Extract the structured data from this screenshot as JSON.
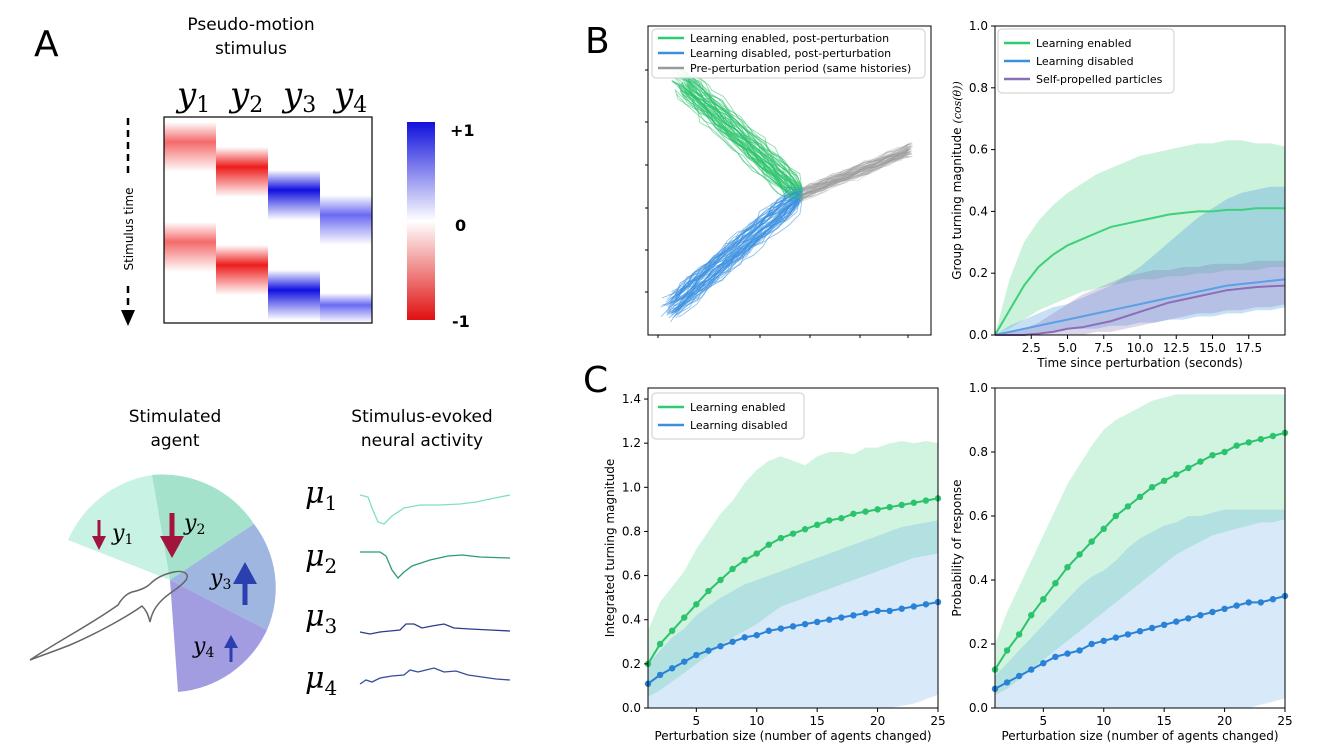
{
  "panels": {
    "A": "A",
    "B": "B",
    "C": "C"
  },
  "panel_a": {
    "title_line1": "Pseudo-motion",
    "title_line2": "stimulus",
    "time_label": "Stimulus time",
    "colorbar_ticks": [
      "+1",
      "0",
      "-1"
    ],
    "columns": [
      {
        "sym": "y",
        "sub": "1"
      },
      {
        "sym": "y",
        "sub": "2"
      },
      {
        "sym": "y",
        "sub": "3"
      },
      {
        "sym": "y",
        "sub": "4"
      }
    ],
    "agent_title_line1": "Stimulated",
    "agent_title_line2": "agent",
    "neural_title_line1": "Stimulus-evoked",
    "neural_title_line2": "neural activity",
    "neurons": [
      {
        "sym": "μ",
        "sub": "1",
        "color": "#7fe0c0"
      },
      {
        "sym": "μ",
        "sub": "2",
        "color": "#2e9a74"
      },
      {
        "sym": "μ",
        "sub": "3",
        "color": "#2a3c8c"
      },
      {
        "sym": "μ",
        "sub": "4",
        "color": "#344e9c"
      }
    ],
    "sector_labels": [
      {
        "sym": "y",
        "sub": "1"
      },
      {
        "sym": "y",
        "sub": "2"
      },
      {
        "sym": "y",
        "sub": "3"
      },
      {
        "sym": "y",
        "sub": "4"
      }
    ]
  },
  "colors": {
    "green": "#2ecc71",
    "green_line": "#2bc36b",
    "blue": "#3b8fe0",
    "purple": "#8a6fb8",
    "gray": "#9a9a9a",
    "dark_red": "#a3143c",
    "dark_blue": "#2b3fb0"
  },
  "chart_data": [
    {
      "id": "B-trajectories",
      "type": "line",
      "title": "",
      "legend": [
        "Learning enabled, post-perturbation",
        "Learning disabled, post-perturbation",
        "Pre-perturbation period (same histories)"
      ],
      "legend_position": "top"
    },
    {
      "id": "B-turning",
      "type": "area",
      "xlabel": "Time since perturbation (seconds)",
      "ylabel": "Group turning magnitude",
      "ylabel_math": "(cos(θ))",
      "xlim": [
        0,
        20
      ],
      "ylim": [
        0,
        1.0
      ],
      "xticks": [
        "2.5",
        "5.0",
        "7.5",
        "10.0",
        "12.5",
        "15.0",
        "17.5"
      ],
      "yticks": [
        "0.0",
        "0.2",
        "0.4",
        "0.6",
        "0.8",
        "1.0"
      ],
      "legend": [
        "Learning enabled",
        "Learning disabled",
        "Self-propelled particles"
      ],
      "legend_position": "top-left",
      "x": [
        0,
        1,
        2,
        3,
        4,
        5,
        6,
        7,
        8,
        9,
        10,
        11,
        12,
        13,
        14,
        15,
        16,
        17,
        18,
        19,
        20
      ],
      "series": [
        {
          "name": "Learning enabled",
          "mean": [
            0,
            0.08,
            0.16,
            0.22,
            0.26,
            0.29,
            0.31,
            0.33,
            0.35,
            0.36,
            0.37,
            0.38,
            0.39,
            0.395,
            0.4,
            0.4,
            0.405,
            0.405,
            0.41,
            0.41,
            0.41
          ],
          "upper": [
            0,
            0.18,
            0.3,
            0.37,
            0.42,
            0.46,
            0.49,
            0.52,
            0.54,
            0.56,
            0.58,
            0.59,
            0.6,
            0.61,
            0.62,
            0.62,
            0.63,
            0.63,
            0.62,
            0.62,
            0.61
          ],
          "lower": [
            0,
            0.02,
            0.05,
            0.08,
            0.1,
            0.12,
            0.14,
            0.15,
            0.16,
            0.17,
            0.18,
            0.18,
            0.19,
            0.19,
            0.2,
            0.2,
            0.21,
            0.21,
            0.21,
            0.22,
            0.22
          ]
        },
        {
          "name": "Learning disabled",
          "mean": [
            0,
            0.01,
            0.02,
            0.03,
            0.04,
            0.05,
            0.06,
            0.07,
            0.08,
            0.09,
            0.1,
            0.11,
            0.12,
            0.13,
            0.14,
            0.15,
            0.16,
            0.165,
            0.17,
            0.175,
            0.18
          ],
          "upper": [
            0,
            0.03,
            0.05,
            0.07,
            0.09,
            0.1,
            0.12,
            0.14,
            0.16,
            0.19,
            0.22,
            0.26,
            0.3,
            0.34,
            0.38,
            0.41,
            0.44,
            0.46,
            0.47,
            0.48,
            0.48
          ],
          "lower": [
            0,
            0,
            0,
            0.01,
            0.01,
            0.02,
            0.02,
            0.02,
            0.03,
            0.03,
            0.04,
            0.04,
            0.05,
            0.05,
            0.06,
            0.06,
            0.07,
            0.07,
            0.08,
            0.08,
            0.09
          ]
        },
        {
          "name": "Self-propelled particles",
          "mean": [
            0,
            0,
            0,
            0.005,
            0.01,
            0.02,
            0.025,
            0.035,
            0.045,
            0.06,
            0.075,
            0.09,
            0.105,
            0.115,
            0.125,
            0.135,
            0.145,
            0.15,
            0.155,
            0.158,
            0.16
          ],
          "upper": [
            0,
            0.01,
            0.02,
            0.04,
            0.07,
            0.1,
            0.13,
            0.15,
            0.17,
            0.19,
            0.2,
            0.21,
            0.21,
            0.22,
            0.22,
            0.23,
            0.23,
            0.23,
            0.24,
            0.24,
            0.24
          ],
          "lower": [
            0,
            0,
            0,
            0,
            0,
            0,
            0,
            0.01,
            0.01,
            0.02,
            0.03,
            0.04,
            0.05,
            0.06,
            0.07,
            0.07,
            0.08,
            0.08,
            0.09,
            0.09,
            0.1
          ]
        }
      ]
    },
    {
      "id": "C-integrated",
      "type": "line",
      "xlabel": "Perturbation size (number of agents changed)",
      "ylabel": "Integrated turning magnitude",
      "xlim": [
        1,
        25
      ],
      "ylim": [
        0,
        1.45
      ],
      "xticks": [
        "5",
        "10",
        "15",
        "20",
        "25"
      ],
      "yticks": [
        "0.0",
        "0.2",
        "0.4",
        "0.6",
        "0.8",
        "1.0",
        "1.2",
        "1.4"
      ],
      "legend": [
        "Learning enabled",
        "Learning disabled"
      ],
      "legend_position": "top-left",
      "x": [
        1,
        2,
        3,
        4,
        5,
        6,
        7,
        8,
        9,
        10,
        11,
        12,
        13,
        14,
        15,
        16,
        17,
        18,
        19,
        20,
        21,
        22,
        23,
        24,
        25
      ],
      "series": [
        {
          "name": "Learning enabled",
          "values": [
            0.2,
            0.29,
            0.35,
            0.41,
            0.47,
            0.53,
            0.58,
            0.63,
            0.67,
            0.7,
            0.74,
            0.77,
            0.79,
            0.81,
            0.83,
            0.85,
            0.86,
            0.88,
            0.89,
            0.9,
            0.91,
            0.92,
            0.93,
            0.94,
            0.95
          ],
          "upper": [
            0.35,
            0.48,
            0.55,
            0.62,
            0.72,
            0.8,
            0.88,
            0.94,
            1.02,
            1.08,
            1.12,
            1.14,
            1.12,
            1.1,
            1.14,
            1.16,
            1.16,
            1.15,
            1.18,
            1.18,
            1.2,
            1.21,
            1.2,
            1.21,
            1.2
          ],
          "lower": [
            0.05,
            0.08,
            0.12,
            0.16,
            0.2,
            0.24,
            0.28,
            0.32,
            0.35,
            0.38,
            0.42,
            0.46,
            0.48,
            0.5,
            0.52,
            0.54,
            0.56,
            0.58,
            0.6,
            0.62,
            0.64,
            0.66,
            0.68,
            0.69,
            0.7
          ]
        },
        {
          "name": "Learning disabled",
          "values": [
            0.11,
            0.15,
            0.18,
            0.21,
            0.24,
            0.26,
            0.28,
            0.3,
            0.32,
            0.33,
            0.35,
            0.36,
            0.37,
            0.38,
            0.39,
            0.4,
            0.41,
            0.42,
            0.43,
            0.44,
            0.44,
            0.45,
            0.46,
            0.47,
            0.48
          ],
          "upper": [
            0.2,
            0.26,
            0.32,
            0.36,
            0.42,
            0.46,
            0.5,
            0.53,
            0.56,
            0.58,
            0.6,
            0.62,
            0.64,
            0.66,
            0.68,
            0.7,
            0.72,
            0.74,
            0.76,
            0.78,
            0.8,
            0.82,
            0.83,
            0.84,
            0.85
          ],
          "lower": [
            0,
            0,
            0,
            0,
            0,
            0,
            0,
            0,
            0,
            0,
            0,
            0,
            0,
            0,
            0,
            0,
            0,
            0,
            0,
            0,
            0,
            0.01,
            0.02,
            0.04,
            0.06
          ]
        }
      ]
    },
    {
      "id": "C-probability",
      "type": "line",
      "xlabel": "Perturbation size (number of agents changed)",
      "ylabel": "Probability of response",
      "xlim": [
        1,
        25
      ],
      "ylim": [
        0,
        1.0
      ],
      "xticks": [
        "5",
        "10",
        "15",
        "20",
        "25"
      ],
      "yticks": [
        "0.0",
        "0.2",
        "0.4",
        "0.6",
        "0.8",
        "1.0"
      ],
      "x": [
        1,
        2,
        3,
        4,
        5,
        6,
        7,
        8,
        9,
        10,
        11,
        12,
        13,
        14,
        15,
        16,
        17,
        18,
        19,
        20,
        21,
        22,
        23,
        24,
        25
      ],
      "series": [
        {
          "name": "Learning enabled",
          "values": [
            0.12,
            0.18,
            0.23,
            0.29,
            0.34,
            0.39,
            0.44,
            0.48,
            0.52,
            0.56,
            0.6,
            0.63,
            0.66,
            0.69,
            0.71,
            0.73,
            0.75,
            0.77,
            0.79,
            0.8,
            0.82,
            0.83,
            0.84,
            0.85,
            0.86
          ],
          "upper": [
            0.2,
            0.3,
            0.38,
            0.46,
            0.54,
            0.62,
            0.7,
            0.76,
            0.82,
            0.87,
            0.9,
            0.92,
            0.94,
            0.96,
            0.97,
            0.98,
            0.98,
            0.98,
            0.98,
            0.98,
            0.98,
            0.98,
            0.98,
            0.98,
            0.98
          ],
          "lower": [
            0.04,
            0.06,
            0.09,
            0.12,
            0.15,
            0.18,
            0.21,
            0.24,
            0.27,
            0.3,
            0.33,
            0.36,
            0.39,
            0.42,
            0.45,
            0.48,
            0.5,
            0.52,
            0.54,
            0.55,
            0.56,
            0.57,
            0.58,
            0.58,
            0.59
          ]
        },
        {
          "name": "Learning disabled",
          "values": [
            0.06,
            0.08,
            0.1,
            0.12,
            0.14,
            0.16,
            0.17,
            0.18,
            0.2,
            0.21,
            0.22,
            0.23,
            0.24,
            0.25,
            0.26,
            0.27,
            0.28,
            0.29,
            0.3,
            0.31,
            0.32,
            0.33,
            0.33,
            0.34,
            0.35
          ],
          "upper": [
            0.1,
            0.14,
            0.18,
            0.22,
            0.26,
            0.3,
            0.34,
            0.38,
            0.41,
            0.43,
            0.46,
            0.5,
            0.53,
            0.55,
            0.57,
            0.58,
            0.6,
            0.6,
            0.61,
            0.62,
            0.62,
            0.62,
            0.62,
            0.62,
            0.62
          ],
          "lower": [
            0,
            0,
            0,
            0,
            0,
            0,
            0,
            0,
            0,
            0,
            0,
            0,
            0,
            0,
            0,
            0,
            0,
            0,
            0,
            0,
            0,
            0,
            0.01,
            0.02,
            0.03
          ]
        }
      ]
    }
  ]
}
